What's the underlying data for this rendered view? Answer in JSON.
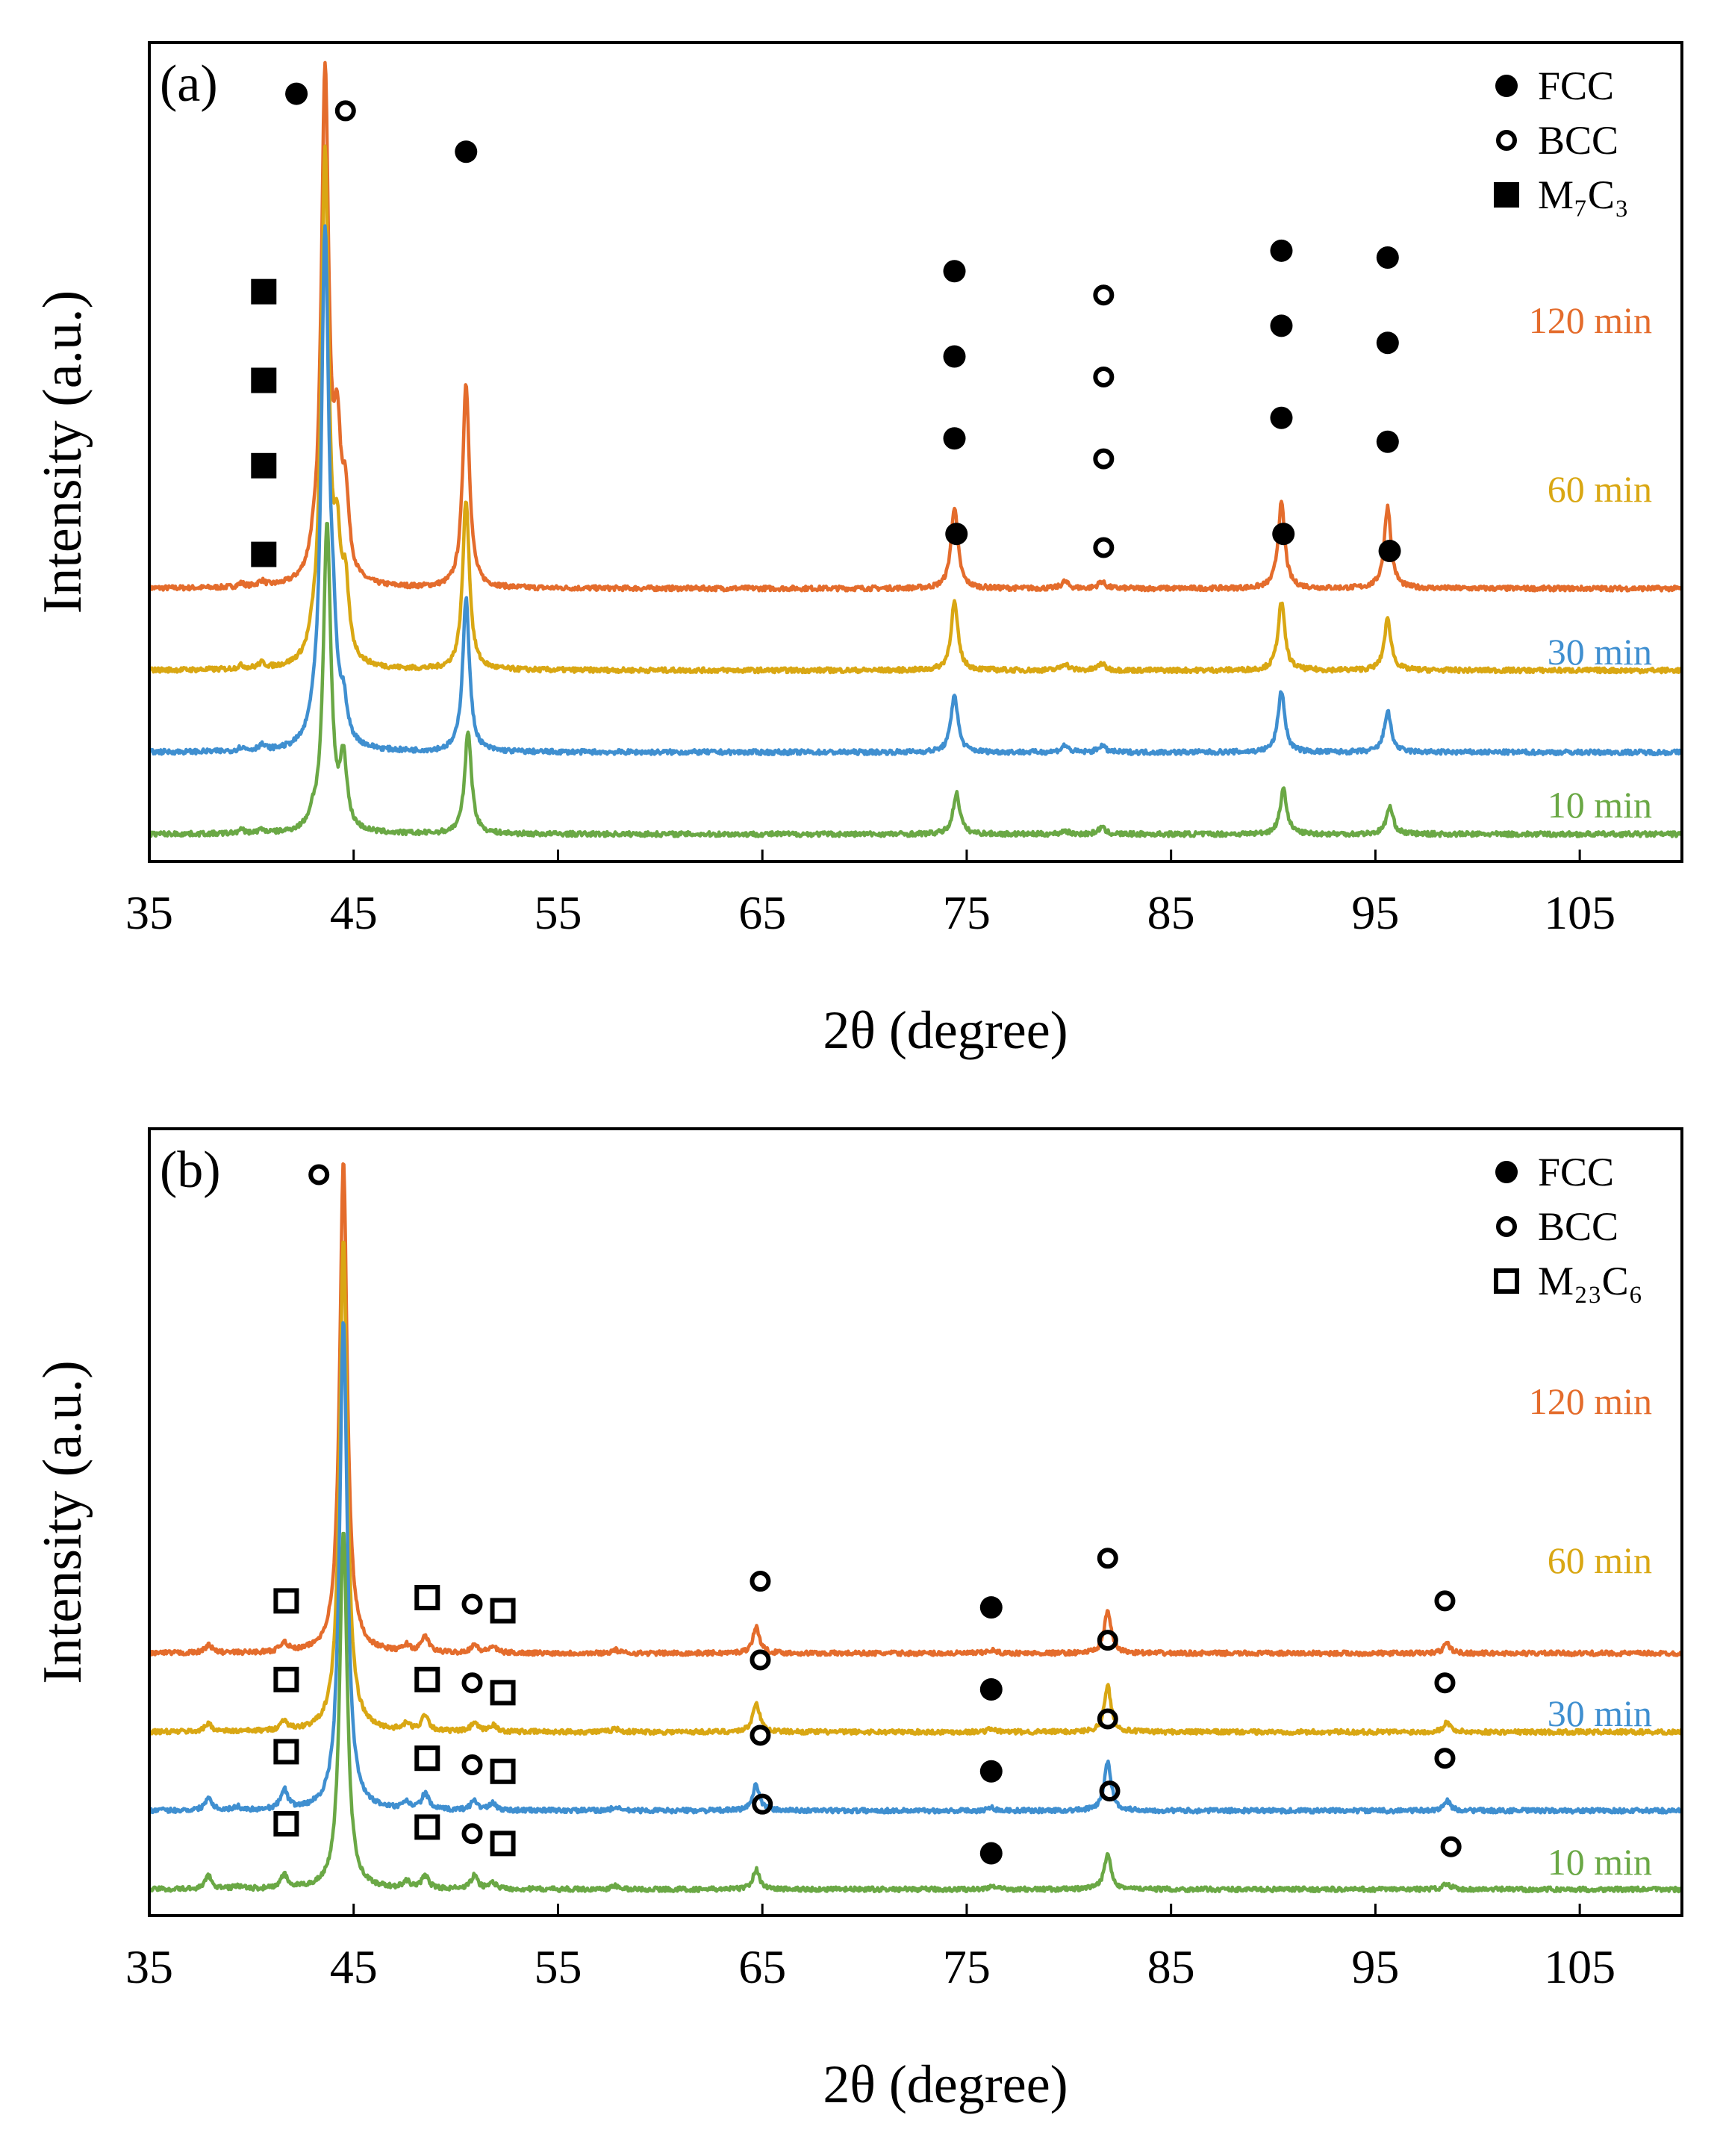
{
  "chart_data": [
    {
      "type": "line",
      "panel_label": "(a)",
      "xlabel": "2θ (degree)",
      "ylabel": "Intensity (a.u.)",
      "xlim": [
        35,
        110
      ],
      "x_ticks": [
        35,
        45,
        55,
        65,
        75,
        85,
        95,
        105
      ],
      "y_ticks": "none",
      "grid": false,
      "legend": {
        "position": "top-right",
        "entries": [
          {
            "label": "FCC",
            "marker": "filled-circle"
          },
          {
            "label": "BCC",
            "marker": "open-circle"
          },
          {
            "label": "M₇C₃",
            "marker": "filled-square"
          }
        ]
      },
      "series": [
        {
          "name": "120 min",
          "color": "#E46C2C",
          "baseline": 80,
          "peaks": [
            [
              39.5,
              1
            ],
            [
              40.5,
              1.5
            ],
            [
              43.0,
              3
            ],
            [
              43.6,
              150
            ],
            [
              44.2,
              36
            ],
            [
              44.6,
              22
            ],
            [
              50.5,
              60
            ],
            [
              74.4,
              24
            ],
            [
              79.8,
              2
            ],
            [
              81.6,
              2
            ],
            [
              90.4,
              25
            ],
            [
              95.6,
              24
            ]
          ],
          "markers": [
            {
              "x": 42.2,
              "y": 225,
              "type": "FCC"
            },
            {
              "x": 44.6,
              "y": 220,
              "type": "BCC"
            },
            {
              "x": 50.5,
              "y": 208,
              "type": "FCC"
            },
            {
              "x": 40.6,
              "y": 167,
              "type": "M7C3"
            },
            {
              "x": 74.4,
              "y": 173,
              "type": "FCC"
            },
            {
              "x": 81.7,
              "y": 166,
              "type": "BCC"
            },
            {
              "x": 90.4,
              "y": 179,
              "type": "FCC"
            },
            {
              "x": 95.6,
              "y": 177,
              "type": "FCC"
            }
          ]
        },
        {
          "name": "60 min",
          "color": "#D9A713",
          "baseline": 56,
          "peaks": [
            [
              39.5,
              1
            ],
            [
              40.5,
              1.5
            ],
            [
              43.0,
              3
            ],
            [
              43.6,
              150
            ],
            [
              44.2,
              28
            ],
            [
              44.6,
              20
            ],
            [
              50.5,
              50
            ],
            [
              74.4,
              20
            ],
            [
              79.8,
              2
            ],
            [
              81.6,
              2
            ],
            [
              90.4,
              20
            ],
            [
              95.6,
              15
            ]
          ],
          "markers": [
            {
              "x": 40.6,
              "y": 141,
              "type": "M7C3"
            },
            {
              "x": 74.4,
              "y": 148,
              "type": "FCC"
            },
            {
              "x": 81.7,
              "y": 142,
              "type": "BCC"
            },
            {
              "x": 90.4,
              "y": 157,
              "type": "FCC"
            },
            {
              "x": 95.6,
              "y": 152,
              "type": "FCC"
            }
          ]
        },
        {
          "name": "30 min",
          "color": "#3F8FD0",
          "baseline": 32,
          "peaks": [
            [
              39.5,
              1
            ],
            [
              40.5,
              1.5
            ],
            [
              43.0,
              3
            ],
            [
              43.6,
              150
            ],
            [
              44.0,
              20
            ],
            [
              44.5,
              10
            ],
            [
              50.5,
              45
            ],
            [
              74.4,
              17
            ],
            [
              79.8,
              2
            ],
            [
              81.6,
              2
            ],
            [
              90.4,
              18
            ],
            [
              95.6,
              12
            ]
          ],
          "markers": [
            {
              "x": 40.6,
              "y": 116,
              "type": "M7C3"
            },
            {
              "x": 74.4,
              "y": 124,
              "type": "FCC"
            },
            {
              "x": 81.7,
              "y": 118,
              "type": "BCC"
            },
            {
              "x": 90.4,
              "y": 130,
              "type": "FCC"
            },
            {
              "x": 95.6,
              "y": 123,
              "type": "FCC"
            }
          ]
        },
        {
          "name": "10 min",
          "color": "#6AA845",
          "baseline": 8,
          "peaks": [
            [
              39.5,
              1
            ],
            [
              40.5,
              1
            ],
            [
              43.0,
              3
            ],
            [
              43.7,
              90
            ],
            [
              44.5,
              20
            ],
            [
              50.6,
              30
            ],
            [
              74.5,
              12
            ],
            [
              79.8,
              1
            ],
            [
              81.6,
              2
            ],
            [
              90.5,
              13
            ],
            [
              95.7,
              8
            ]
          ],
          "markers": [
            {
              "x": 40.6,
              "y": 90,
              "type": "M7C3"
            },
            {
              "x": 74.5,
              "y": 96,
              "type": "FCC"
            },
            {
              "x": 81.7,
              "y": 92,
              "type": "BCC"
            },
            {
              "x": 90.5,
              "y": 96,
              "type": "FCC"
            },
            {
              "x": 95.7,
              "y": 91,
              "type": "FCC"
            }
          ]
        }
      ]
    },
    {
      "type": "line",
      "panel_label": "(b)",
      "xlabel": "2θ (degree)",
      "ylabel": "Intensity (a.u.)",
      "xlim": [
        35,
        110
      ],
      "x_ticks": [
        35,
        45,
        55,
        65,
        75,
        85,
        95,
        105
      ],
      "y_ticks": "none",
      "grid": false,
      "legend": {
        "position": "top-right",
        "entries": [
          {
            "label": "FCC",
            "marker": "filled-circle"
          },
          {
            "label": "BCC",
            "marker": "open-circle"
          },
          {
            "label": "M₂₃C₆",
            "marker": "open-square"
          }
        ]
      },
      "series": [
        {
          "name": "120 min",
          "color": "#E46C2C",
          "baseline": 80,
          "peaks": [
            [
              37.9,
              2.5
            ],
            [
              41.6,
              3
            ],
            [
              44.5,
              150
            ],
            [
              47.6,
              2
            ],
            [
              48.5,
              5
            ],
            [
              50.9,
              2.5
            ],
            [
              51.8,
              2
            ],
            [
              57.8,
              1
            ],
            [
              64.7,
              8
            ],
            [
              76.2,
              1
            ],
            [
              81.9,
              13
            ],
            [
              98.5,
              3
            ]
          ],
          "markers": [
            {
              "x": 43.3,
              "y": 226,
              "type": "BCC"
            },
            {
              "x": 41.7,
              "y": 96,
              "type": "M23C6"
            },
            {
              "x": 48.6,
              "y": 97,
              "type": "M23C6"
            },
            {
              "x": 50.8,
              "y": 95,
              "type": "BCC"
            },
            {
              "x": 52.3,
              "y": 93,
              "type": "M23C6"
            },
            {
              "x": 64.9,
              "y": 102,
              "type": "BCC"
            },
            {
              "x": 76.2,
              "y": 94,
              "type": "FCC"
            },
            {
              "x": 81.9,
              "y": 109,
              "type": "BCC"
            },
            {
              "x": 98.4,
              "y": 96,
              "type": "BCC"
            }
          ]
        },
        {
          "name": "60 min",
          "color": "#D9A713",
          "baseline": 56,
          "peaks": [
            [
              37.9,
              2.5
            ],
            [
              41.6,
              3
            ],
            [
              44.5,
              150
            ],
            [
              47.6,
              2
            ],
            [
              48.5,
              5
            ],
            [
              50.9,
              2.5
            ],
            [
              51.8,
              2
            ],
            [
              57.8,
              1
            ],
            [
              64.7,
              9
            ],
            [
              76.2,
              1
            ],
            [
              81.9,
              14
            ],
            [
              98.5,
              3
            ]
          ],
          "markers": [
            {
              "x": 41.7,
              "y": 72,
              "type": "M23C6"
            },
            {
              "x": 48.6,
              "y": 72,
              "type": "M23C6"
            },
            {
              "x": 50.8,
              "y": 71,
              "type": "BCC"
            },
            {
              "x": 52.3,
              "y": 68,
              "type": "M23C6"
            },
            {
              "x": 64.9,
              "y": 78,
              "type": "BCC"
            },
            {
              "x": 76.2,
              "y": 69,
              "type": "FCC"
            },
            {
              "x": 81.9,
              "y": 84,
              "type": "BCC"
            },
            {
              "x": 98.4,
              "y": 71,
              "type": "BCC"
            }
          ]
        },
        {
          "name": "30 min",
          "color": "#3F8FD0",
          "baseline": 32,
          "peaks": [
            [
              37.9,
              4
            ],
            [
              39.3,
              1
            ],
            [
              41.6,
              6
            ],
            [
              44.5,
              150
            ],
            [
              47.6,
              2
            ],
            [
              48.5,
              5
            ],
            [
              50.9,
              3
            ],
            [
              51.8,
              2
            ],
            [
              57.8,
              1
            ],
            [
              64.7,
              8
            ],
            [
              76.2,
              1
            ],
            [
              81.9,
              15
            ],
            [
              98.5,
              3
            ]
          ],
          "markers": [
            {
              "x": 41.7,
              "y": 50,
              "type": "M23C6"
            },
            {
              "x": 48.6,
              "y": 48,
              "type": "M23C6"
            },
            {
              "x": 50.8,
              "y": 46,
              "type": "BCC"
            },
            {
              "x": 52.3,
              "y": 44,
              "type": "M23C6"
            },
            {
              "x": 64.9,
              "y": 55,
              "type": "BCC"
            },
            {
              "x": 76.2,
              "y": 44,
              "type": "FCC"
            },
            {
              "x": 81.9,
              "y": 60,
              "type": "BCC"
            },
            {
              "x": 98.4,
              "y": 48,
              "type": "BCC"
            }
          ]
        },
        {
          "name": "10 min",
          "color": "#6AA845",
          "baseline": 8,
          "peaks": [
            [
              37.9,
              4
            ],
            [
              39.3,
              1
            ],
            [
              41.6,
              4
            ],
            [
              44.5,
              110
            ],
            [
              47.6,
              2
            ],
            [
              48.5,
              4
            ],
            [
              50.9,
              4
            ],
            [
              51.8,
              2
            ],
            [
              57.8,
              1
            ],
            [
              64.7,
              6
            ],
            [
              76.2,
              1
            ],
            [
              81.9,
              11
            ],
            [
              98.5,
              2
            ]
          ],
          "markers": [
            {
              "x": 41.7,
              "y": 28,
              "type": "M23C6"
            },
            {
              "x": 48.6,
              "y": 27,
              "type": "M23C6"
            },
            {
              "x": 50.8,
              "y": 25,
              "type": "BCC"
            },
            {
              "x": 52.3,
              "y": 22,
              "type": "M23C6"
            },
            {
              "x": 65.0,
              "y": 34,
              "type": "BCC"
            },
            {
              "x": 76.2,
              "y": 19,
              "type": "FCC"
            },
            {
              "x": 82.0,
              "y": 38,
              "type": "BCC"
            },
            {
              "x": 98.7,
              "y": 21,
              "type": "BCC"
            }
          ]
        }
      ]
    }
  ]
}
